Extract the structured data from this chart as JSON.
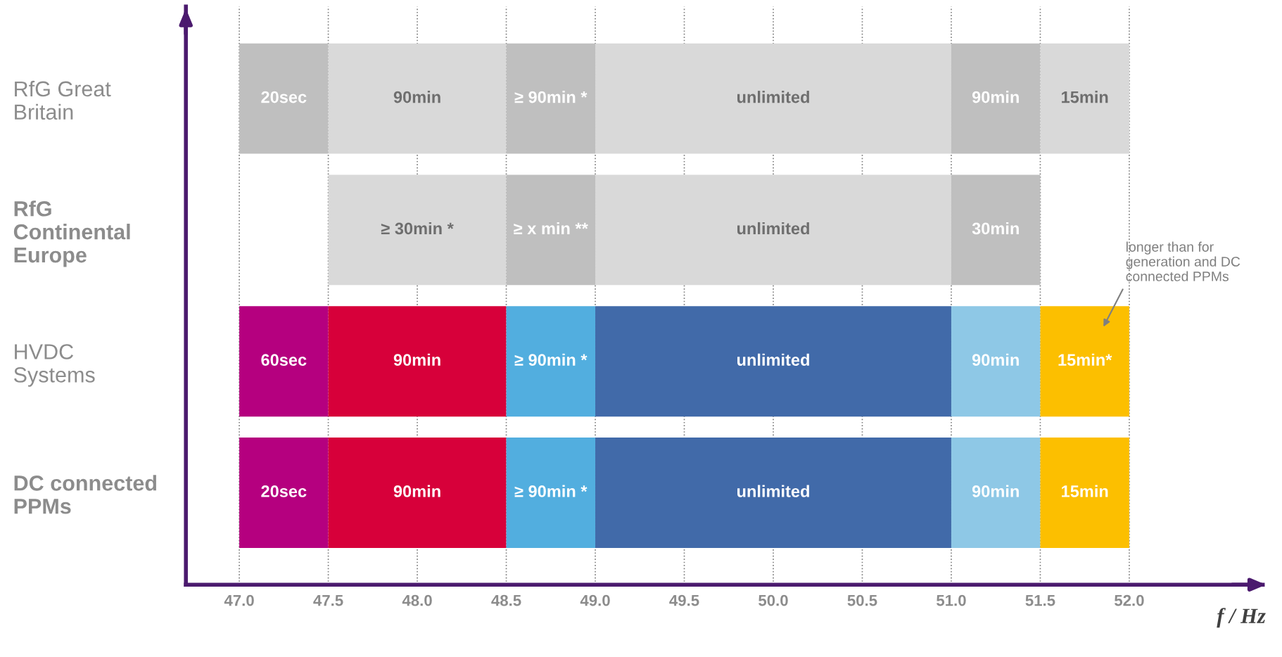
{
  "chart_data": {
    "type": "bar",
    "orientation": "horizontal",
    "categories": [
      "RfG Great\nBritain",
      "RfG\nContinental\nEurope",
      "HVDC\nSystems",
      "DC connected\nPPMs"
    ],
    "series": [
      {
        "base": [
          47,
          null,
          47,
          47
        ],
        "values": [
          0.5,
          null,
          0.5,
          0.5
        ],
        "colors": [
          "#bfbfbf",
          "#bfbfbf",
          "#b5007f",
          "#b5007f"
        ]
      },
      {
        "base": [
          47.5,
          47.5,
          47.5,
          47.5
        ],
        "values": [
          1,
          1,
          1,
          1
        ],
        "colors": [
          "#d9d9d9",
          "#d9d9d9",
          "#d7003a",
          "#d7003a"
        ]
      },
      {
        "base": [
          48.5,
          48.5,
          48.5,
          48.5
        ],
        "values": [
          0.5,
          0.5,
          0.5,
          0.5
        ],
        "colors": [
          "#bfbfbf",
          "#bfbfbf",
          "#52aedf",
          "#52aedf"
        ]
      },
      {
        "base": [
          49,
          49,
          49,
          49
        ],
        "values": [
          2,
          2,
          2,
          2
        ],
        "colors": [
          "#d9d9d9",
          "#d9d9d9",
          "#416aa9",
          "#416aa9"
        ]
      },
      {
        "base": [
          51,
          51,
          51,
          51
        ],
        "values": [
          0.5,
          0.5,
          0.5,
          0.5
        ],
        "colors": [
          "#bfbfbf",
          "#bfbfbf",
          "#8ec8e6",
          "#8ec8e6"
        ]
      },
      {
        "base": [
          51.5,
          null,
          51.5,
          51.5
        ],
        "values": [
          0.5,
          null,
          0.5,
          0.5
        ],
        "colors": [
          "#d9d9d9",
          "#d9d9d9",
          "#fcbf00",
          "#fcbf00"
        ]
      }
    ],
    "xlim": [
      46.7,
      52.75
    ],
    "xticks": [
      {
        "value": 47,
        "label": "47.0"
      },
      {
        "value": 47.5,
        "label": "47.5"
      },
      {
        "value": 48,
        "label": "48.0"
      },
      {
        "value": 48.5,
        "label": "48.5"
      },
      {
        "value": 49,
        "label": "49.0"
      },
      {
        "value": 49.5,
        "label": "49.5"
      },
      {
        "value": 50,
        "label": "50.0"
      },
      {
        "value": 50.5,
        "label": "50.5"
      },
      {
        "value": 51,
        "label": "51.0"
      },
      {
        "value": 51.5,
        "label": "51.5"
      },
      {
        "value": 52,
        "label": "52.0"
      }
    ],
    "xlabel": "f / Hz",
    "grid": "x",
    "annotations": [
      "20sec",
      "90min",
      "≥ 90min *",
      "unlimited",
      "90min",
      "15min",
      "≥ 30min *",
      "≥ x min **",
      "unlimited",
      "30min",
      "60sec",
      "90min",
      "≥ 90min *",
      "unlimited",
      "90min",
      "15min*",
      "20sec",
      "90min",
      "≥ 90min *",
      "unlimited",
      "90min",
      "15min",
      "longer than for\ngeneration and DC\nconnected PPMs"
    ]
  }
}
